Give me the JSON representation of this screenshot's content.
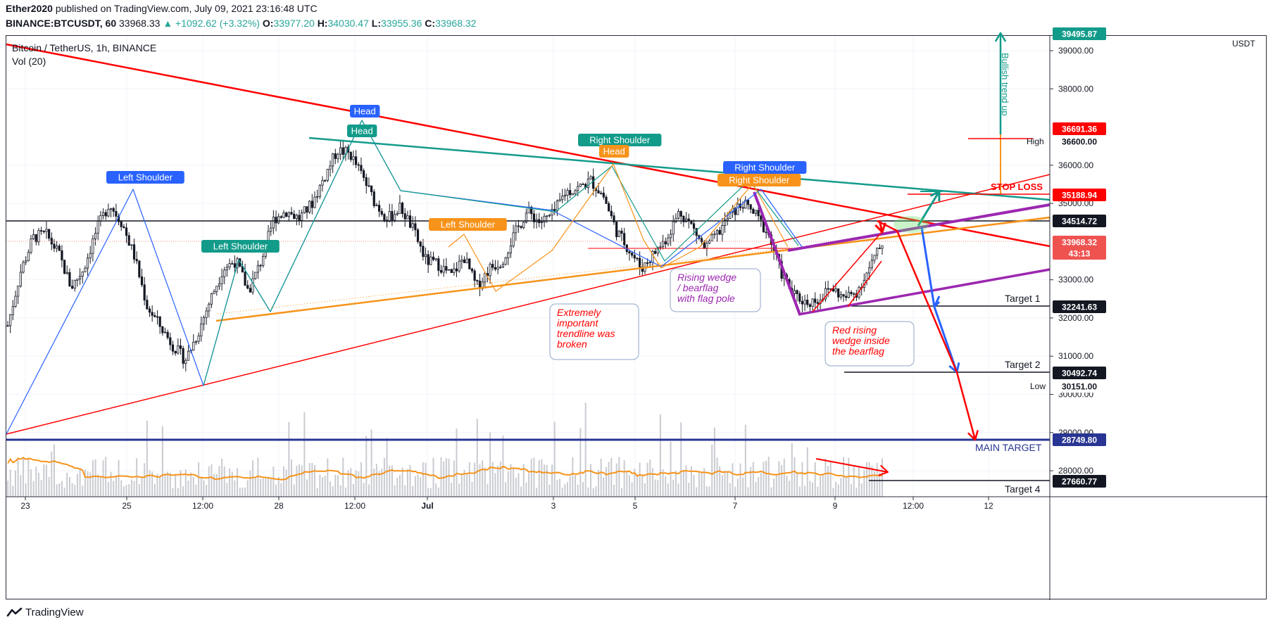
{
  "header": {
    "author": "Ether2020",
    "published_text": "published on TradingView.com, July 09, 2021 23:16:48 UTC",
    "symbol": "BINANCE:BTCUSDT, 60",
    "last": "33968.33",
    "change": "▲ +1092.62 (+3.32%)",
    "o_label": "O:",
    "o": "33977.20",
    "h_label": "H:",
    "h": "34030.47",
    "l_label": "L:",
    "l": "33955.36",
    "c_label": "C:",
    "c": "33968.32"
  },
  "legend": {
    "title": "Bitcoin / TetherUS, 1h, BINANCE",
    "vol": "Vol (20)"
  },
  "footer": {
    "brand": "TradingView"
  },
  "colors": {
    "up": "#26a69a",
    "down": "#ef5350",
    "candle": "#131722",
    "red": "#ff0000",
    "teal": "#139b8a",
    "orange": "#f7931a",
    "purple": "#9c27b0",
    "blue": "#2962ff",
    "navy": "#283593"
  },
  "chart_data": {
    "type": "candlestick",
    "title": "Bitcoin / TetherUS, 1h, BINANCE",
    "currency_label": "USDT",
    "y_axis": {
      "ticks": [
        39000,
        38000,
        36000,
        35000,
        33000,
        32000,
        31000,
        30000,
        29000,
        28000
      ],
      "tick_labels": [
        "39000.00",
        "38000.00",
        "36000.00",
        "35000.00",
        "33000.00",
        "32000.00",
        "31000.00",
        "30000.00",
        "29000.00",
        "28000.00"
      ]
    },
    "x_axis": {
      "tick_labels": [
        "23",
        "25",
        "12:00",
        "28",
        "12:00",
        "Jul",
        "3",
        "5",
        "7",
        "9",
        "12:00",
        "12"
      ]
    },
    "price_path": [
      [
        "06-23",
        31800
      ],
      [
        "06-23",
        33200
      ],
      [
        "06-23",
        34100
      ],
      [
        "06-23",
        34200
      ],
      [
        "06-24",
        33700
      ],
      [
        "06-24",
        32800
      ],
      [
        "06-24",
        33300
      ],
      [
        "06-25",
        34300
      ],
      [
        "06-25",
        35000
      ],
      [
        "06-25",
        34500
      ],
      [
        "06-25",
        33600
      ],
      [
        "06-26",
        32300
      ],
      [
        "06-26",
        31800
      ],
      [
        "06-26",
        31300
      ],
      [
        "06-26",
        30900
      ],
      [
        "06-26",
        31600
      ],
      [
        "06-27",
        32500
      ],
      [
        "06-27",
        33300
      ],
      [
        "06-27",
        33500
      ],
      [
        "06-27",
        32700
      ],
      [
        "06-27",
        33500
      ],
      [
        "06-28",
        34600
      ],
      [
        "06-28",
        34800
      ],
      [
        "06-28",
        34600
      ],
      [
        "06-28",
        35000
      ],
      [
        "06-29",
        35700
      ],
      [
        "06-29",
        36400
      ],
      [
        "06-29",
        36300
      ],
      [
        "06-29",
        35700
      ],
      [
        "06-30",
        35000
      ],
      [
        "06-30",
        34600
      ],
      [
        "06-30",
        34900
      ],
      [
        "06-30",
        34300
      ],
      [
        "07-01",
        33500
      ],
      [
        "07-01",
        33400
      ],
      [
        "07-01",
        33100
      ],
      [
        "07-02",
        33600
      ],
      [
        "07-02",
        32800
      ],
      [
        "07-02",
        33300
      ],
      [
        "07-02",
        33500
      ],
      [
        "07-03",
        34200
      ],
      [
        "07-03",
        34800
      ],
      [
        "07-03",
        34500
      ],
      [
        "07-04",
        34700
      ],
      [
        "07-04",
        35300
      ],
      [
        "07-04",
        35400
      ],
      [
        "07-04",
        35600
      ],
      [
        "07-04",
        35200
      ],
      [
        "07-05",
        34300
      ],
      [
        "07-05",
        33800
      ],
      [
        "07-05",
        33300
      ],
      [
        "07-06",
        33700
      ],
      [
        "07-06",
        34100
      ],
      [
        "07-06",
        34800
      ],
      [
        "07-06",
        34400
      ],
      [
        "07-06",
        33800
      ],
      [
        "07-07",
        34200
      ],
      [
        "07-07",
        34700
      ],
      [
        "07-07",
        35000
      ],
      [
        "07-07",
        34700
      ],
      [
        "07-08",
        34200
      ],
      [
        "07-08",
        33200
      ],
      [
        "07-08",
        32600
      ],
      [
        "07-08",
        32400
      ],
      [
        "07-08",
        32500
      ],
      [
        "07-09",
        32800
      ],
      [
        "07-09",
        32500
      ],
      [
        "07-09",
        32700
      ],
      [
        "07-09",
        33300
      ],
      [
        "07-09",
        33968
      ]
    ],
    "levels": [
      {
        "name": "Target 1",
        "price": 32241.63,
        "label": "32241.63"
      },
      {
        "name": "Target 2",
        "price": 30492.74,
        "label": "30492.74"
      },
      {
        "name": "MAIN TARGET",
        "price": 28749.8,
        "label": "28749.80"
      },
      {
        "name": "Target 4",
        "price": 27660.77,
        "label": "27660.77"
      },
      {
        "name": "STOP LOSS",
        "price": 35188.94,
        "label": "35188.94"
      },
      {
        "name": "High",
        "price": 36600.0,
        "label": "36600.00"
      },
      {
        "name": "Low",
        "price": 30151.0,
        "label": "30151.00"
      }
    ],
    "axis_badges": {
      "top_partial": "39495.87",
      "level_36691": "36691.36",
      "level_34514": "34514.72",
      "last_price": "33968.32",
      "countdown": "43:13"
    },
    "annotations": {
      "head_blue": "Head",
      "head_teal": "Head",
      "head_orange": "Head",
      "left_shoulder_blue": "Left Shoulder",
      "left_shoulder_teal": "Left Shoulder",
      "left_shoulder_orange": "Left Shoulder",
      "right_shoulder_teal": "Right Shoulder",
      "right_shoulder_blue": "Right Shoulder",
      "right_shoulder_orange": "Right Shoulder",
      "bullish_trend": "Bullish trend up",
      "stop_loss": "STOP LOSS",
      "main_target": "MAIN TARGET",
      "target1": "Target 1",
      "target2": "Target 2",
      "target4": "Target 4",
      "trendline_note": [
        "Extremely",
        "important",
        "trendline was",
        "broken"
      ],
      "wedge_note": [
        "Rising wedge",
        "/ bearflag",
        "with flag pole"
      ],
      "red_wedge_note": [
        "Red rising",
        "wedge inside",
        "the bearflag"
      ]
    }
  }
}
